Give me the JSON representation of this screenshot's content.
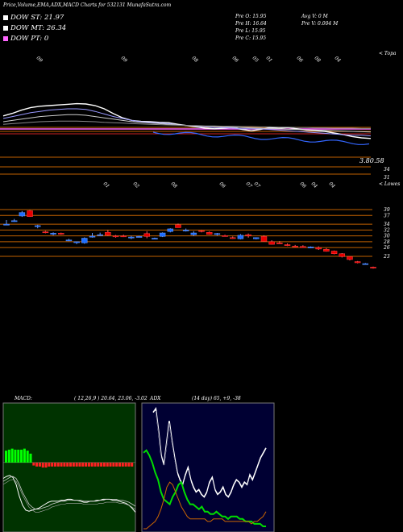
{
  "header": {
    "title": "Price,Volume,EMA,ADX,MACD Charts for 532131 MunafaSutra.com",
    "dow": [
      {
        "label": "DOW ST: 21.97",
        "color": "#ffffff"
      },
      {
        "label": "DOW MT: 26.34",
        "color": "#ffffff"
      },
      {
        "label": "DOW PT: 0",
        "color": "#ff66ff"
      }
    ],
    "quote": {
      "open": "Pre   O: 15.95",
      "high": "Pre   H: 16.64",
      "low": "Pre   L: 15.95",
      "close": "Pre   C: 15.95",
      "avg_vol": "Avg V: 0   M",
      "prev_vol": "Pre   V: 0.004   M"
    }
  },
  "top_panel": {
    "right_label": "< Topa",
    "dates": [
      "09",
      "09",
      "08",
      "06",
      "05",
      "01",
      "06",
      "08",
      "04"
    ],
    "price_label": "3.80.58",
    "levels": [
      "34",
      "31"
    ]
  },
  "lower_panel": {
    "right_label": "< Lowes",
    "dates": [
      "01",
      "02",
      "08",
      "06",
      "07",
      "07",
      "06",
      "04",
      "04"
    ],
    "y_ticks": [
      "39",
      "37",
      "34",
      "32",
      "30",
      "28",
      "26",
      "23"
    ]
  },
  "macd": {
    "label": "MACD:",
    "params": "( 12,26,9 ) 20.64, 23.06, -3.02"
  },
  "adx": {
    "label": "ADX",
    "params": "(14  day) 65, +9, -38"
  },
  "colors": {
    "background": "#000000",
    "up_candle": "#1f6fff",
    "down_candle": "#e60000",
    "macd_bg": "#003300",
    "grid_orange": "#c06000",
    "adx_bg": "#000033",
    "adx_green": "#00dd00",
    "adx_orange": "#cc6600"
  },
  "chart_data": {
    "type": "candlestick",
    "title": "Price,Volume,EMA,ADX,MACD Charts for 532131 MunafaSutra.com",
    "ohlc": [
      {
        "o": 34.0,
        "h": 35.4,
        "l": 33.9,
        "c": 34.0
      },
      {
        "o": 35.0,
        "h": 35.8,
        "l": 34.8,
        "c": 35.2
      },
      {
        "o": 36.8,
        "h": 38.5,
        "l": 36.5,
        "c": 38.0
      },
      {
        "o": 38.6,
        "h": 38.8,
        "l": 36.5,
        "c": 36.6
      },
      {
        "o": 33.4,
        "h": 33.8,
        "l": 32.6,
        "c": 33.5
      },
      {
        "o": 31.4,
        "h": 31.7,
        "l": 30.9,
        "c": 31.2
      },
      {
        "o": 30.6,
        "h": 31.2,
        "l": 30.2,
        "c": 30.9
      },
      {
        "o": 30.9,
        "h": 31.1,
        "l": 30.4,
        "c": 30.6
      },
      {
        "o": 28.4,
        "h": 29.0,
        "l": 28.2,
        "c": 28.6
      },
      {
        "o": 27.8,
        "h": 28.0,
        "l": 27.2,
        "c": 28.0
      },
      {
        "o": 27.6,
        "h": 29.5,
        "l": 27.3,
        "c": 29.2
      },
      {
        "o": 29.8,
        "h": 31.0,
        "l": 29.4,
        "c": 29.9
      },
      {
        "o": 30.4,
        "h": 31.1,
        "l": 30.0,
        "c": 30.4
      },
      {
        "o": 31.2,
        "h": 32.0,
        "l": 30.0,
        "c": 30.2
      },
      {
        "o": 30.0,
        "h": 30.3,
        "l": 29.4,
        "c": 29.8
      },
      {
        "o": 30.0,
        "h": 30.4,
        "l": 29.6,
        "c": 29.8
      },
      {
        "o": 29.6,
        "h": 30.0,
        "l": 28.9,
        "c": 29.6
      },
      {
        "o": 29.6,
        "h": 30.0,
        "l": 29.5,
        "c": 29.8
      },
      {
        "o": 30.8,
        "h": 31.6,
        "l": 29.2,
        "c": 29.8
      },
      {
        "o": 29.0,
        "h": 29.4,
        "l": 28.9,
        "c": 29.2
      },
      {
        "o": 29.8,
        "h": 31.2,
        "l": 29.6,
        "c": 31.0
      },
      {
        "o": 31.5,
        "h": 32.6,
        "l": 31.2,
        "c": 32.4
      },
      {
        "o": 33.8,
        "h": 34.2,
        "l": 32.8,
        "c": 32.8
      },
      {
        "o": 32.0,
        "h": 32.5,
        "l": 31.5,
        "c": 32.0
      },
      {
        "o": 30.4,
        "h": 31.6,
        "l": 30.0,
        "c": 31.0
      },
      {
        "o": 31.8,
        "h": 32.0,
        "l": 31.2,
        "c": 31.5
      },
      {
        "o": 31.2,
        "h": 31.5,
        "l": 30.4,
        "c": 30.5
      },
      {
        "o": 30.5,
        "h": 31.0,
        "l": 30.1,
        "c": 30.8
      },
      {
        "o": 30.1,
        "h": 30.4,
        "l": 29.8,
        "c": 30.0
      },
      {
        "o": 29.4,
        "h": 29.8,
        "l": 29.0,
        "c": 29.1
      },
      {
        "o": 29.0,
        "h": 30.6,
        "l": 28.8,
        "c": 30.2
      },
      {
        "o": 30.4,
        "h": 30.8,
        "l": 29.4,
        "c": 30.0
      },
      {
        "o": 29.0,
        "h": 29.5,
        "l": 28.8,
        "c": 29.4
      },
      {
        "o": 29.8,
        "h": 30.2,
        "l": 28.0,
        "c": 28.1
      },
      {
        "o": 28.0,
        "h": 28.5,
        "l": 27.0,
        "c": 27.1
      },
      {
        "o": 27.6,
        "h": 28.2,
        "l": 27.2,
        "c": 27.5
      },
      {
        "o": 27.0,
        "h": 27.4,
        "l": 26.5,
        "c": 26.7
      },
      {
        "o": 26.5,
        "h": 26.9,
        "l": 26.1,
        "c": 26.3
      },
      {
        "o": 26.4,
        "h": 26.8,
        "l": 26.0,
        "c": 26.0
      },
      {
        "o": 26.0,
        "h": 26.4,
        "l": 25.8,
        "c": 26.2
      },
      {
        "o": 26.0,
        "h": 26.4,
        "l": 25.2,
        "c": 25.5
      },
      {
        "o": 25.4,
        "h": 25.8,
        "l": 24.6,
        "c": 24.7
      },
      {
        "o": 24.8,
        "h": 25.0,
        "l": 23.7,
        "c": 23.9
      },
      {
        "o": 23.9,
        "h": 24.1,
        "l": 22.6,
        "c": 22.9
      },
      {
        "o": 22.9,
        "h": 23.0,
        "l": 21.6,
        "c": 21.9
      },
      {
        "o": 21.2,
        "h": 21.4,
        "l": 20.6,
        "c": 20.8
      },
      {
        "o": 20.4,
        "h": 20.7,
        "l": 20.1,
        "c": 20.5
      },
      {
        "o": 19.3,
        "h": 19.5,
        "l": 18.8,
        "c": 19.2
      }
    ],
    "ema_top": [
      {
        "name": "",
        "values": [
          0.48,
          0.56,
          0.66,
          0.74,
          0.78,
          0.8,
          0.82,
          0.84,
          0.86,
          0.85,
          0.8,
          0.7,
          0.55,
          0.42,
          0.34,
          0.31,
          0.3,
          0.28,
          0.27,
          0.22,
          0.18,
          0.14,
          0.1,
          0.08,
          0.1,
          0.12,
          0.06,
          0.02,
          0.06,
          0.12,
          0.1,
          0.12,
          0.08,
          0.04,
          0.02,
          0.0,
          -0.05,
          -0.1,
          -0.16,
          -0.2,
          -0.22
        ]
      },
      {
        "name": "",
        "values": [
          0.4,
          0.46,
          0.52,
          0.58,
          0.62,
          0.66,
          0.68,
          0.7,
          0.7,
          0.68,
          0.62,
          0.54,
          0.46,
          0.4,
          0.34,
          0.3,
          0.28,
          0.26,
          0.24,
          0.2,
          0.18,
          0.16,
          0.14,
          0.12,
          0.12,
          0.1,
          0.08,
          0.08,
          0.08,
          0.06,
          0.04,
          0.02,
          0.0,
          -0.02,
          -0.04,
          -0.06,
          -0.08,
          -0.1,
          -0.12,
          -0.12,
          -0.14
        ]
      },
      {
        "name": "",
        "values": [
          0.3,
          0.34,
          0.38,
          0.42,
          0.46,
          0.48,
          0.5,
          0.52,
          0.52,
          0.5,
          0.46,
          0.42,
          0.38,
          0.34,
          0.3,
          0.28,
          0.26,
          0.24,
          0.22,
          0.2,
          0.18,
          0.17,
          0.16,
          0.15,
          0.14,
          0.13,
          0.12,
          0.11,
          0.1,
          0.09,
          0.08,
          0.07,
          0.06,
          0.05,
          0.04,
          0.03,
          0.02,
          0.01,
          0.0,
          -0.01,
          -0.02
        ]
      },
      {
        "name": "",
        "values": [
          0.22,
          0.24,
          0.26,
          0.28,
          0.3,
          0.31,
          0.32,
          0.32,
          0.32,
          0.31,
          0.3,
          0.28,
          0.27,
          0.26,
          0.24,
          0.23,
          0.22,
          0.21,
          0.2,
          0.19,
          0.18,
          0.18,
          0.17,
          0.17,
          0.16,
          0.16,
          0.15,
          0.15,
          0.14,
          0.14,
          0.13,
          0.13,
          0.12,
          0.12,
          0.11,
          0.11,
          0.1,
          0.1,
          0.1,
          0.09,
          0.09
        ]
      }
    ],
    "macd": {
      "macd_line": [
        -1.6,
        -1.4,
        -1.3,
        -1.5,
        -2.2,
        -3.4,
        -4.3,
        -4.8,
        -4.9,
        -4.8,
        -4.7,
        -4.6,
        -4.4,
        -4.2,
        -4.0,
        -3.9,
        -3.9,
        -3.9,
        -3.8,
        -3.8,
        -3.7,
        -3.7,
        -3.8,
        -3.8,
        -3.9,
        -4.0,
        -4.0,
        -3.9,
        -3.9,
        -3.8,
        -3.8,
        -3.7,
        -3.7,
        -3.7,
        -3.8,
        -3.8,
        -3.9,
        -4.0,
        -4.1,
        -4.3,
        -4.6,
        -5.0
      ],
      "signal_line": [
        -1.9,
        -1.7,
        -1.5,
        -1.4,
        -1.6,
        -2.2,
        -3.0,
        -3.6,
        -4.2,
        -4.5,
        -4.7,
        -4.7,
        -4.6,
        -4.5,
        -4.4,
        -4.2,
        -4.1,
        -4.0,
        -3.9,
        -3.9,
        -3.8,
        -3.8,
        -3.8,
        -3.8,
        -3.8,
        -3.9,
        -3.9,
        -3.9,
        -3.9,
        -3.9,
        -3.8,
        -3.8,
        -3.7,
        -3.7,
        -3.7,
        -3.7,
        -3.8,
        -3.8,
        -3.9,
        -4.0,
        -4.2,
        -4.4
      ],
      "histogram": [
        1.2,
        1.3,
        1.4,
        1.3,
        1.3,
        1.3,
        1.4,
        1.2,
        0.9,
        -0.3,
        -0.4,
        -0.4,
        -0.5,
        -0.5,
        -0.4,
        -0.4,
        -0.4,
        -0.4,
        -0.4,
        -0.4,
        -0.4,
        -0.4,
        -0.4,
        -0.4,
        -0.4,
        -0.4,
        -0.4,
        -0.4,
        -0.4,
        -0.4,
        -0.4,
        -0.4,
        -0.4,
        -0.4,
        -0.4,
        -0.4,
        -0.4,
        -0.4,
        -0.4,
        -0.4,
        -0.4,
        -0.4
      ],
      "ylim": [
        -7,
        6
      ]
    },
    "adx": {
      "adx_line": [
        95,
        98,
        80,
        60,
        52,
        70,
        88,
        72,
        58,
        46,
        40,
        36,
        44,
        50,
        40,
        34,
        30,
        32,
        28,
        26,
        30,
        38,
        42,
        32,
        28,
        30,
        34,
        28,
        26,
        30,
        36,
        40,
        38,
        34,
        38,
        36,
        44,
        40,
        46,
        52,
        58,
        62,
        66
      ],
      "plus_di": [
        62,
        64,
        60,
        54,
        46,
        40,
        30,
        24,
        22,
        20,
        26,
        30,
        36,
        38,
        30,
        24,
        20,
        20,
        18,
        16,
        18,
        14,
        14,
        12,
        12,
        14,
        12,
        10,
        10,
        8,
        10,
        10,
        10,
        8,
        8,
        6,
        6,
        6,
        4,
        4,
        4,
        2,
        2
      ],
      "minus_di": [
        0,
        0,
        2,
        4,
        6,
        10,
        16,
        24,
        34,
        38,
        36,
        30,
        24,
        18,
        14,
        10,
        8,
        8,
        8,
        8,
        8,
        8,
        6,
        6,
        8,
        8,
        8,
        8,
        6,
        6,
        6,
        6,
        6,
        6,
        6,
        6,
        6,
        4,
        6,
        6,
        8,
        10,
        14
      ],
      "ylim": [
        0,
        100
      ]
    }
  }
}
